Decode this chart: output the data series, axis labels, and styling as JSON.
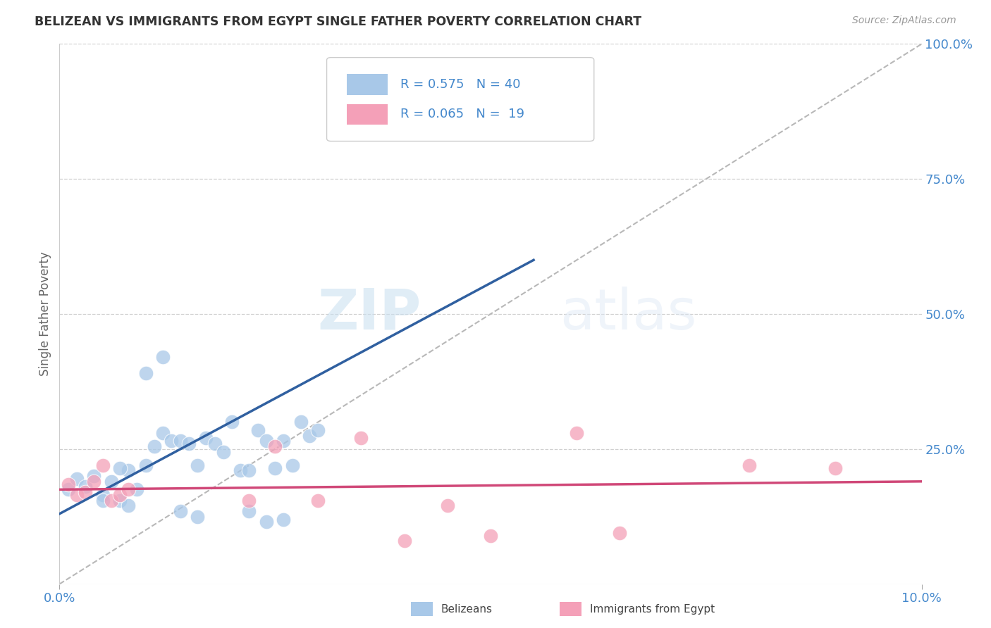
{
  "title": "BELIZEAN VS IMMIGRANTS FROM EGYPT SINGLE FATHER POVERTY CORRELATION CHART",
  "source": "Source: ZipAtlas.com",
  "ylabel": "Single Father Poverty",
  "background_color": "#ffffff",
  "watermark_zip": "ZIP",
  "watermark_atlas": "atlas",
  "legend_label1": "Belizeans",
  "legend_label2": "Immigrants from Egypt",
  "R1": 0.575,
  "N1": 40,
  "R2": 0.065,
  "N2": 19,
  "blue_color": "#a8c8e8",
  "pink_color": "#f4a0b8",
  "blue_line_color": "#3060a0",
  "pink_line_color": "#d04878",
  "diagonal_color": "#b8b8b8",
  "title_color": "#333333",
  "axis_label_color": "#4488cc",
  "belizean_x": [
    0.001,
    0.002,
    0.003,
    0.004,
    0.005,
    0.006,
    0.007,
    0.008,
    0.009,
    0.01,
    0.011,
    0.012,
    0.013,
    0.014,
    0.015,
    0.016,
    0.017,
    0.018,
    0.019,
    0.02,
    0.021,
    0.022,
    0.023,
    0.024,
    0.025,
    0.026,
    0.027,
    0.028,
    0.029,
    0.03,
    0.005,
    0.007,
    0.008,
    0.01,
    0.012,
    0.014,
    0.016,
    0.022,
    0.024,
    0.026
  ],
  "belizean_y": [
    0.175,
    0.195,
    0.18,
    0.2,
    0.165,
    0.19,
    0.155,
    0.21,
    0.175,
    0.22,
    0.255,
    0.28,
    0.265,
    0.265,
    0.26,
    0.22,
    0.27,
    0.26,
    0.245,
    0.3,
    0.21,
    0.21,
    0.285,
    0.265,
    0.215,
    0.265,
    0.22,
    0.3,
    0.275,
    0.285,
    0.155,
    0.215,
    0.145,
    0.39,
    0.42,
    0.135,
    0.125,
    0.135,
    0.115,
    0.12
  ],
  "egypt_x": [
    0.001,
    0.002,
    0.003,
    0.004,
    0.005,
    0.006,
    0.007,
    0.008,
    0.022,
    0.025,
    0.03,
    0.035,
    0.04,
    0.045,
    0.05,
    0.06,
    0.065,
    0.08,
    0.09
  ],
  "egypt_y": [
    0.185,
    0.165,
    0.17,
    0.19,
    0.22,
    0.155,
    0.165,
    0.175,
    0.155,
    0.255,
    0.155,
    0.27,
    0.08,
    0.145,
    0.09,
    0.28,
    0.095,
    0.22,
    0.215
  ],
  "xlim": [
    0.0,
    0.1
  ],
  "ylim": [
    0.0,
    1.0
  ]
}
